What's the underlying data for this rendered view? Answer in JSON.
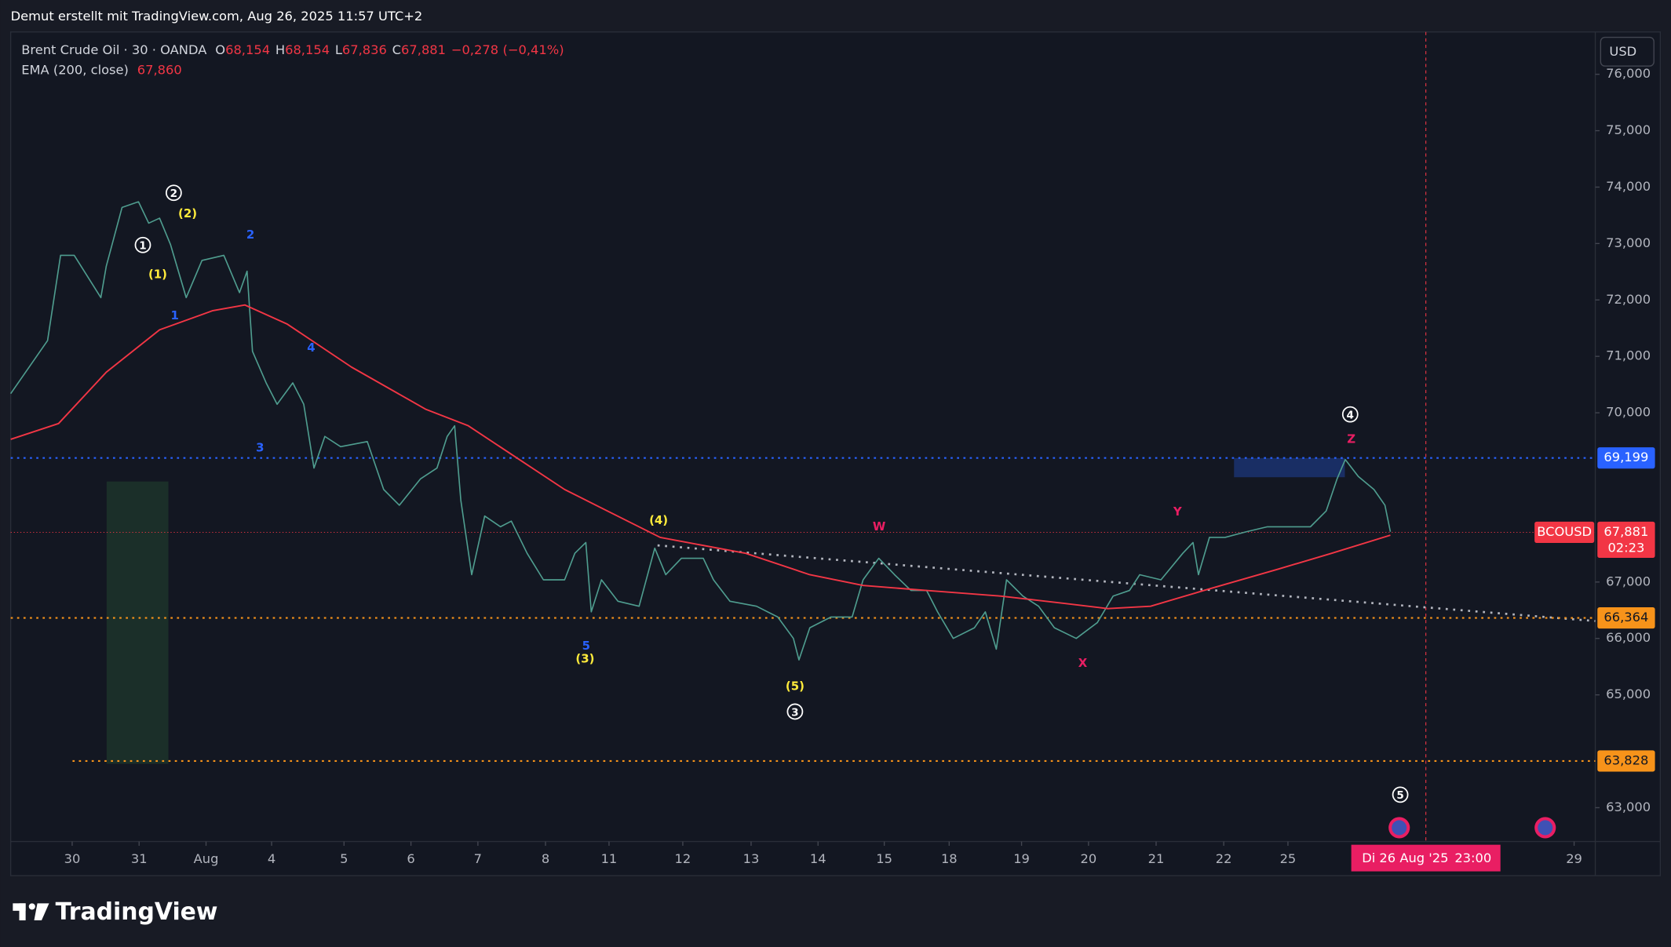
{
  "header": "Demut erstellt mit TradingView.com, Aug 26, 2025 11:57 UTC+2",
  "chart_data": {
    "type": "line",
    "ohlc": [
      {
        "prefix": "O",
        "value": 68.154,
        "label": "68,154"
      },
      {
        "prefix": "H",
        "value": 68.154,
        "label": "68,154"
      },
      {
        "prefix": "L",
        "value": 67.836,
        "label": "67,836"
      },
      {
        "prefix": "C",
        "value": 67.881,
        "label": "67,881"
      }
    ],
    "change": {
      "value": -0.278,
      "label": "−0,278"
    },
    "change_pct": {
      "value": -0.41,
      "label": "(−0,41%)"
    },
    "ema_value": {
      "value": 67.86,
      "label": "67,860"
    },
    "currency": "USD",
    "series": [
      {
        "name": "Brent Crude Oil · 30 · OANDA",
        "color": "#4f9d8f",
        "x": [
          -0.9,
          -0.36,
          -0.17,
          0.03,
          0.42,
          0.5,
          0.73,
          0.97,
          1.12,
          1.28,
          1.44,
          1.67,
          1.9,
          2.22,
          2.45,
          2.56,
          2.64,
          2.84,
          3.0,
          3.23,
          3.39,
          3.54,
          3.7,
          3.93,
          4.32,
          4.56,
          4.79,
          5.1,
          5.34,
          5.49,
          5.6,
          5.69,
          5.85,
          6.04,
          6.27,
          6.43,
          6.66,
          6.9,
          7.21,
          7.36,
          7.52,
          7.6,
          7.75,
          7.99,
          8.3,
          8.53,
          8.69,
          8.92,
          9.24,
          9.39,
          9.63,
          10.02,
          10.33,
          10.56,
          10.64,
          10.8,
          11.11,
          11.42,
          11.58,
          11.81,
          12.04,
          12.28,
          12.51,
          12.67,
          12.9,
          13.21,
          13.37,
          13.53,
          13.68,
          13.92,
          14.15,
          14.38,
          14.7,
          15.01,
          15.24,
          15.48,
          15.63,
          15.94,
          16.26,
          16.41,
          16.49,
          16.65,
          16.88,
          17.19,
          17.5,
          17.82,
          18.13,
          18.36,
          18.52,
          18.64,
          18.83,
          19.06,
          19.22,
          19.3
        ],
        "values": [
          70.34,
          71.28,
          72.79,
          72.79,
          72.04,
          72.6,
          73.64,
          73.74,
          73.36,
          73.45,
          72.98,
          72.04,
          72.7,
          72.79,
          72.13,
          72.51,
          71.09,
          70.53,
          70.15,
          70.53,
          70.15,
          69.02,
          69.58,
          69.4,
          69.49,
          68.64,
          68.36,
          68.83,
          69.02,
          69.58,
          69.77,
          68.45,
          67.13,
          68.17,
          67.98,
          68.08,
          67.51,
          67.04,
          67.04,
          67.51,
          67.7,
          66.47,
          67.04,
          66.66,
          66.57,
          67.6,
          67.13,
          67.42,
          67.42,
          67.04,
          66.66,
          66.57,
          66.38,
          66.0,
          65.62,
          66.19,
          66.38,
          66.38,
          67.04,
          67.42,
          67.13,
          66.85,
          66.85,
          66.47,
          66.0,
          66.19,
          66.47,
          65.81,
          67.04,
          66.75,
          66.57,
          66.19,
          66.0,
          66.28,
          66.75,
          66.85,
          67.13,
          67.04,
          67.51,
          67.7,
          67.13,
          67.79,
          67.79,
          67.89,
          67.98,
          67.98,
          67.98,
          68.26,
          68.83,
          69.17,
          68.87,
          68.64,
          68.36,
          67.89
        ]
      },
      {
        "name": "EMA (200, close)",
        "color": "#f23645",
        "x": [
          -0.9,
          -0.2,
          0.5,
          1.28,
          2.06,
          2.53,
          3.15,
          4.09,
          5.18,
          5.8,
          7.21,
          8.61,
          9.86,
          10.8,
          11.58,
          12.51,
          13.6,
          14.54,
          15.16,
          15.79,
          16.57,
          17.66,
          18.44,
          19.3
        ],
        "values": [
          69.53,
          69.81,
          70.72,
          71.47,
          71.81,
          71.91,
          71.57,
          70.81,
          70.06,
          69.77,
          68.64,
          67.79,
          67.51,
          67.13,
          66.94,
          66.85,
          66.75,
          66.62,
          66.53,
          66.57,
          66.85,
          67.23,
          67.51,
          67.83
        ]
      }
    ],
    "xlim": [
      -0.9,
      22.3
    ],
    "xticks": [
      {
        "value": 0,
        "label": "30"
      },
      {
        "value": 0.98,
        "label": "31"
      },
      {
        "value": 1.96,
        "label": "Aug"
      },
      {
        "value": 2.92,
        "label": "4"
      },
      {
        "value": 3.98,
        "label": "5"
      },
      {
        "value": 4.96,
        "label": "6"
      },
      {
        "value": 5.94,
        "label": "7"
      },
      {
        "value": 6.93,
        "label": "8"
      },
      {
        "value": 7.86,
        "label": "11"
      },
      {
        "value": 8.94,
        "label": "12"
      },
      {
        "value": 9.94,
        "label": "13"
      },
      {
        "value": 10.92,
        "label": "14"
      },
      {
        "value": 11.89,
        "label": "15"
      },
      {
        "value": 12.84,
        "label": "18"
      },
      {
        "value": 13.9,
        "label": "19"
      },
      {
        "value": 14.88,
        "label": "20"
      },
      {
        "value": 15.87,
        "label": "21"
      },
      {
        "value": 16.86,
        "label": "22"
      },
      {
        "value": 17.8,
        "label": "25"
      },
      {
        "value": 21.99,
        "label": "29"
      }
    ],
    "ylim": [
      62.4,
      76.75
    ],
    "yticks": [
      {
        "value": 63,
        "label": "63,000"
      },
      {
        "value": 65,
        "label": "65,000"
      },
      {
        "value": 66,
        "label": "66,000"
      },
      {
        "value": 67,
        "label": "67,000"
      },
      {
        "value": 70,
        "label": "70,000"
      },
      {
        "value": 71,
        "label": "71,000"
      },
      {
        "value": 72,
        "label": "72,000"
      },
      {
        "value": 73,
        "label": "73,000"
      },
      {
        "value": 74,
        "label": "74,000"
      },
      {
        "value": 75,
        "label": "75,000"
      },
      {
        "value": 76,
        "label": "76,000"
      }
    ],
    "levels": [
      {
        "value": 69.199,
        "label": "69,199",
        "color": "#2962ff"
      },
      {
        "value": 66.364,
        "label": "66,364",
        "color": "#f7931a"
      },
      {
        "value": 63.828,
        "label": "63,828",
        "color": "#f7931a"
      },
      {
        "value": 67.881,
        "label": "67,881",
        "color": "#f23645",
        "symbol": "BCOUSD",
        "countdown": "02:23"
      }
    ],
    "crosshair": {
      "date": "Di 26 Aug '25",
      "time": "23:00"
    },
    "annotations": [
      {
        "text": "1",
        "color": "#ffffff",
        "circle": true
      },
      {
        "text": "2",
        "color": "#ffffff",
        "circle": true
      },
      {
        "text": "3",
        "color": "#ffffff",
        "circle": true
      },
      {
        "text": "4",
        "color": "#ffffff",
        "circle": true
      },
      {
        "text": "5",
        "color": "#ffffff",
        "circle": true
      },
      {
        "text": "(1)",
        "color": "#ffeb3b"
      },
      {
        "text": "(2)",
        "color": "#ffeb3b"
      },
      {
        "text": "(3)",
        "color": "#ffeb3b"
      },
      {
        "text": "(4)",
        "color": "#ffeb3b"
      },
      {
        "text": "(5)",
        "color": "#ffeb3b"
      },
      {
        "text": "1",
        "color": "#2962ff"
      },
      {
        "text": "2",
        "color": "#2962ff"
      },
      {
        "text": "3",
        "color": "#2962ff"
      },
      {
        "text": "4",
        "color": "#2962ff"
      },
      {
        "text": "5",
        "color": "#2962ff"
      },
      {
        "text": "W",
        "color": "#e91e63"
      },
      {
        "text": "X",
        "color": "#e91e63"
      },
      {
        "text": "Y",
        "color": "#e91e63"
      },
      {
        "text": "Z",
        "color": "#e91e63"
      }
    ]
  },
  "brand": "TradingView"
}
